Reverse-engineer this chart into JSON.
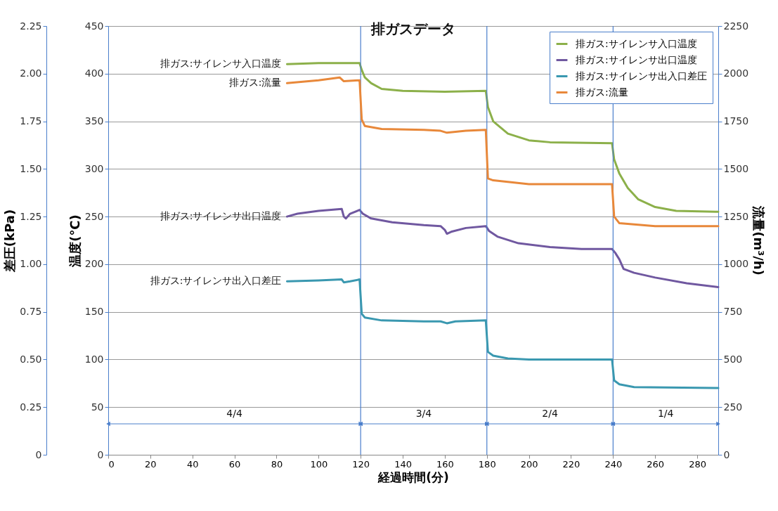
{
  "chart_data": {
    "type": "line",
    "title": "排ガスデータ",
    "xlabel": "経過時間(分)",
    "ylabel": "温度(℃)",
    "y2label": "流量(m³/h)",
    "y3label": "差圧(kPa)",
    "xlim": [
      0,
      290
    ],
    "xticks": [
      0,
      20,
      40,
      60,
      80,
      100,
      120,
      140,
      160,
      180,
      200,
      220,
      240,
      260,
      280
    ],
    "ylim": [
      0,
      450
    ],
    "yticks": [
      0,
      50,
      100,
      150,
      200,
      250,
      300,
      350,
      400,
      450
    ],
    "y2lim": [
      0,
      2250
    ],
    "y2ticks": [
      0,
      250,
      500,
      750,
      1000,
      1250,
      1500,
      1750,
      2000,
      2250
    ],
    "y3lim": [
      0,
      2.25
    ],
    "y3ticks": [
      0,
      0.25,
      {
        "value": 0.5,
        "label": "0.50"
      },
      0.75,
      {
        "value": 1,
        "label": "1.00"
      },
      1.25,
      {
        "value": 1.5,
        "label": "1.50"
      },
      1.75,
      {
        "value": 2,
        "label": "2.00"
      },
      2.25
    ],
    "grid": "y",
    "legend": "top right",
    "series": [
      {
        "name": "排ガス:サイレンサ入口温度",
        "color": "#8cb04a",
        "x": [
          85,
          100,
          110,
          119.5,
          120.5,
          122,
          125,
          130,
          140,
          160,
          179.5,
          180.5,
          183,
          190,
          200,
          210,
          239.5,
          240.5,
          243,
          247,
          252,
          260,
          270,
          290
        ],
        "values": [
          410,
          411,
          411,
          411,
          404,
          396,
          390,
          384,
          382,
          381,
          382,
          365,
          350,
          337,
          330,
          328,
          327,
          310,
          295,
          280,
          268,
          260,
          256,
          255
        ]
      },
      {
        "name": "排ガス:サイレンサ出口温度",
        "color": "#7058a0",
        "x": [
          85,
          90,
          100,
          111,
          112,
          113,
          115,
          119.5,
          121,
          125,
          135,
          150,
          158,
          160,
          161,
          163,
          170,
          179.5,
          181,
          185,
          195,
          210,
          225,
          239.5,
          241,
          243,
          245,
          250,
          260,
          275,
          290
        ],
        "values": [
          250,
          253,
          256,
          258,
          250,
          248,
          253,
          257,
          253,
          248,
          244,
          241,
          240,
          236,
          232,
          234,
          238,
          240,
          235,
          229,
          222,
          218,
          216,
          216,
          212,
          205,
          195,
          191,
          186,
          180,
          176
        ]
      },
      {
        "name": "排ガス:サイレンサ出入口差圧",
        "color": "#3a98b0",
        "axis": "y3",
        "x": [
          85,
          100,
          111,
          112,
          115,
          119.5,
          120.5,
          122,
          130,
          150,
          158,
          161,
          165,
          179.5,
          180.5,
          183,
          190,
          200,
          239.5,
          240.5,
          243,
          250,
          290
        ],
        "values": [
          0.91,
          0.915,
          0.92,
          0.905,
          0.91,
          0.92,
          0.74,
          0.72,
          0.705,
          0.7,
          0.7,
          0.69,
          0.7,
          0.705,
          0.54,
          0.52,
          0.505,
          0.5,
          0.5,
          0.39,
          0.37,
          0.355,
          0.35
        ]
      },
      {
        "name": "排ガス:流量",
        "color": "#e8883a",
        "axis": "y2",
        "x": [
          85,
          100,
          110,
          112,
          119.5,
          120.5,
          122,
          130,
          150,
          158,
          161,
          170,
          179.5,
          180.5,
          183,
          200,
          220,
          239.5,
          240.5,
          243,
          260,
          290
        ],
        "values": [
          1950,
          1965,
          1980,
          1960,
          1965,
          1760,
          1725,
          1710,
          1705,
          1700,
          1690,
          1700,
          1705,
          1450,
          1440,
          1420,
          1420,
          1420,
          1250,
          1215,
          1200,
          1200
        ]
      }
    ],
    "ref_lines": [
      {
        "axis": "x",
        "value": 120,
        "color": "#4a7ecb"
      },
      {
        "axis": "x",
        "value": 180,
        "color": "#4a7ecb"
      },
      {
        "axis": "x",
        "value": 240,
        "color": "#4a7ecb"
      }
    ],
    "annotations": [
      "4/4",
      "3/4",
      "2/4",
      "1/4"
    ]
  }
}
